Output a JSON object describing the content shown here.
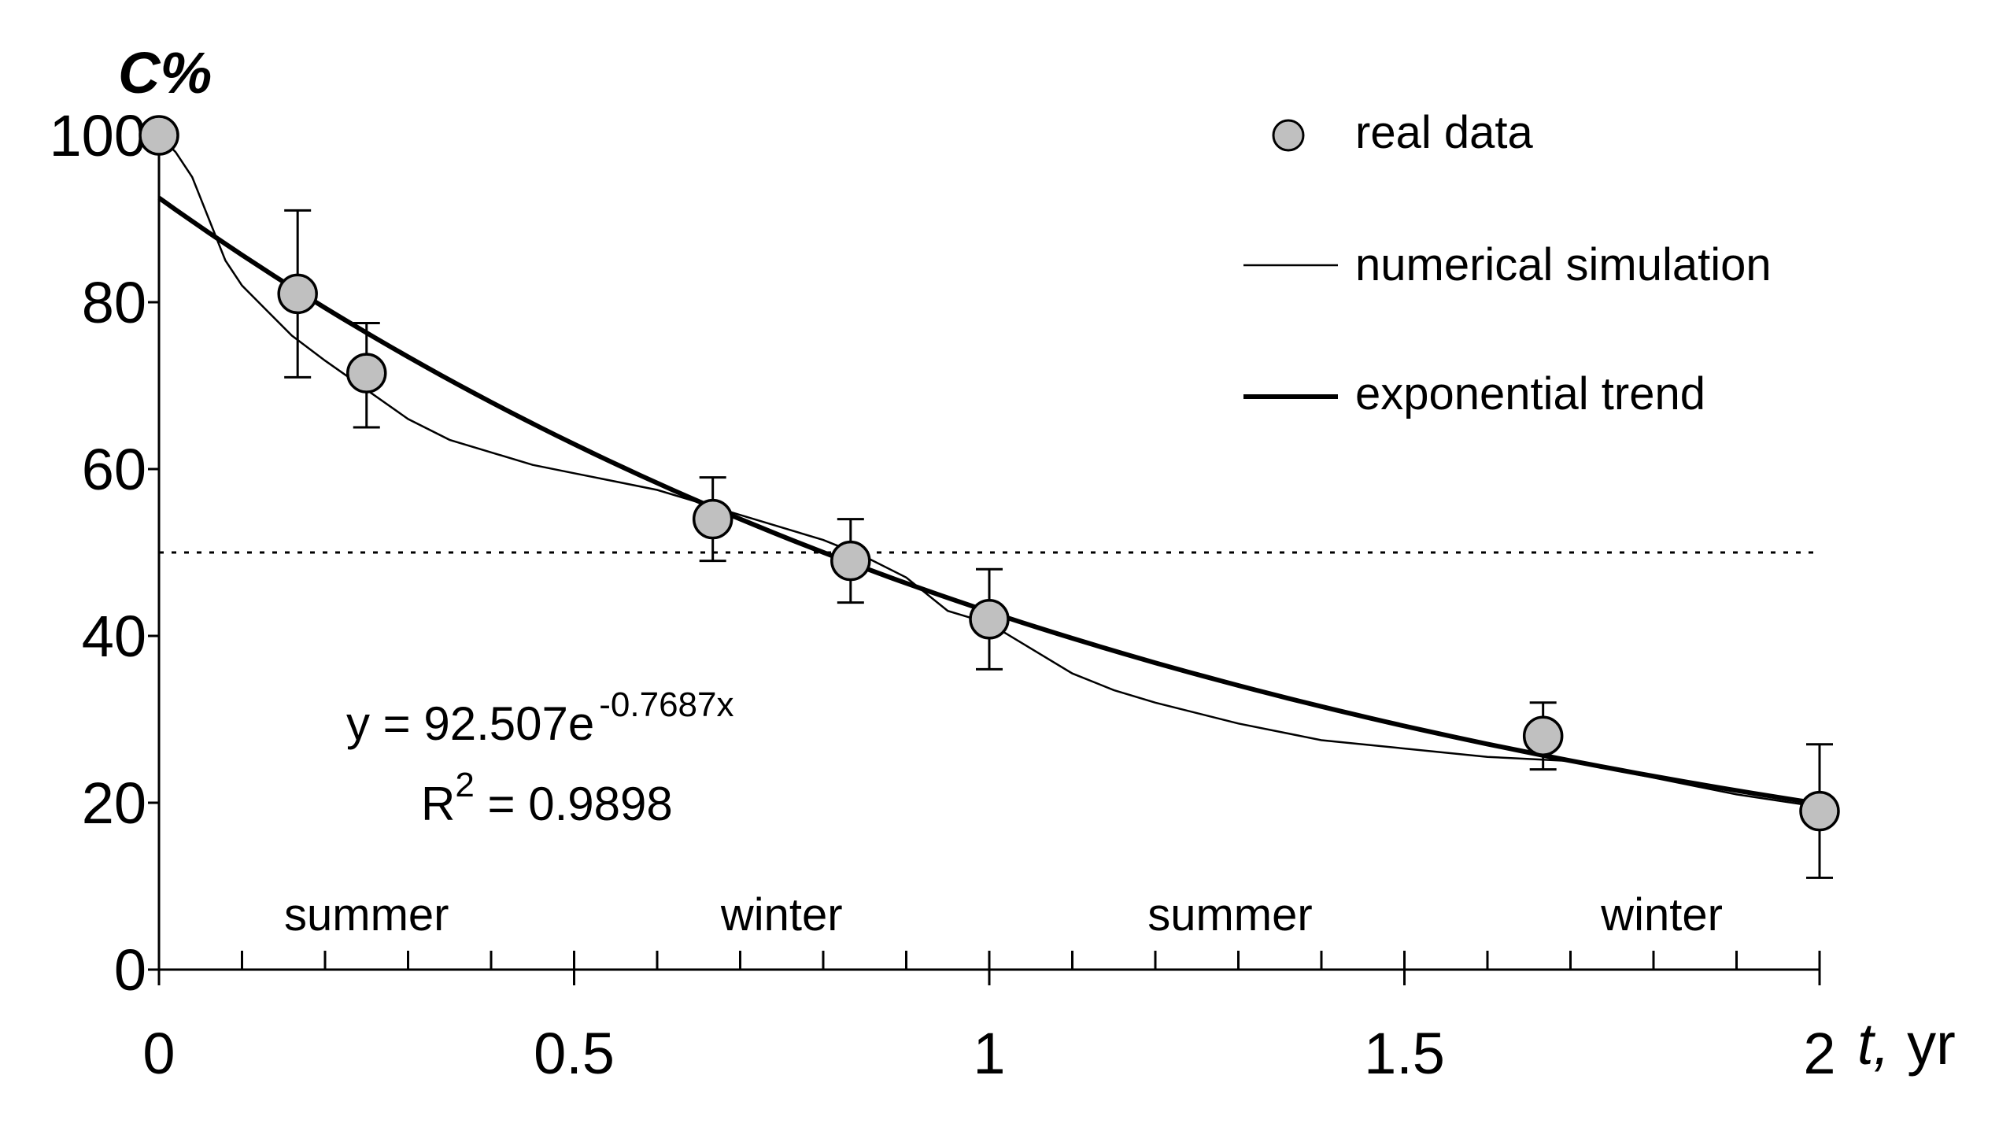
{
  "chart_data": {
    "type": "scatter",
    "title": "",
    "xlabel_italic": "t,",
    "xlabel_unit": "yr",
    "ylabel": "C%",
    "xlim": [
      0,
      2
    ],
    "ylim": [
      0,
      100
    ],
    "x_ticks": [
      0,
      0.5,
      1,
      1.5,
      2
    ],
    "x_tick_labels": [
      "0",
      "0.5",
      "1",
      "1.5",
      "2"
    ],
    "x_minor_step": 0.1,
    "y_ticks": [
      0,
      20,
      40,
      60,
      80,
      100
    ],
    "y_tick_labels": [
      "0",
      "20",
      "40",
      "60",
      "80",
      "100"
    ],
    "grid": false,
    "legend_position": "top-right",
    "legend": [
      "real data",
      "numerical simulation",
      "exponential trend"
    ],
    "seasons": [
      {
        "label": "summer",
        "x": 0.25
      },
      {
        "label": "winter",
        "x": 0.75
      },
      {
        "label": "summer",
        "x": 1.29
      },
      {
        "label": "winter",
        "x": 1.81
      }
    ],
    "threshold": {
      "y": 50,
      "style": "dotted"
    },
    "real_data": {
      "name": "real data",
      "points": [
        {
          "x": 0.0,
          "y": 100,
          "err_low": null,
          "err_high": null
        },
        {
          "x": 0.167,
          "y": 81,
          "err_low": 71,
          "err_high": 91
        },
        {
          "x": 0.25,
          "y": 71.5,
          "err_low": 65,
          "err_high": 77.5
        },
        {
          "x": 0.667,
          "y": 54,
          "err_low": 49,
          "err_high": 59
        },
        {
          "x": 0.833,
          "y": 49,
          "err_low": 44,
          "err_high": 54
        },
        {
          "x": 1.0,
          "y": 42,
          "err_low": 36,
          "err_high": 48
        },
        {
          "x": 1.667,
          "y": 28,
          "err_low": 24,
          "err_high": 32
        },
        {
          "x": 2.0,
          "y": 19,
          "err_low": 11,
          "err_high": 27
        }
      ]
    },
    "numerical_simulation": {
      "name": "numerical simulation",
      "x": [
        0,
        0.02,
        0.04,
        0.06,
        0.08,
        0.1,
        0.13,
        0.16,
        0.2,
        0.25,
        0.3,
        0.35,
        0.4,
        0.45,
        0.5,
        0.55,
        0.6,
        0.65,
        0.7,
        0.75,
        0.8,
        0.85,
        0.9,
        0.95,
        1.0,
        1.05,
        1.1,
        1.15,
        1.2,
        1.3,
        1.4,
        1.5,
        1.6,
        1.7,
        1.8,
        1.9,
        2.0
      ],
      "y": [
        100,
        98,
        95,
        90,
        85,
        82,
        79,
        76,
        73,
        69.5,
        66,
        63.5,
        62,
        60.5,
        59.5,
        58.5,
        57.5,
        56,
        54.5,
        53,
        51.5,
        49.5,
        47,
        43,
        41.5,
        38.5,
        35.5,
        33.5,
        32,
        29.5,
        27.5,
        26.5,
        25.5,
        25,
        23,
        21,
        19.5
      ]
    },
    "exponential_trend": {
      "name": "exponential trend",
      "equation_prefix": "y = 92.507e",
      "equation_exponent": "-0.7687x",
      "a": 92.507,
      "b": -0.7687,
      "r2_prefix": "R",
      "r2_sup": "2",
      "r2_suffix": " = 0.9898"
    }
  }
}
